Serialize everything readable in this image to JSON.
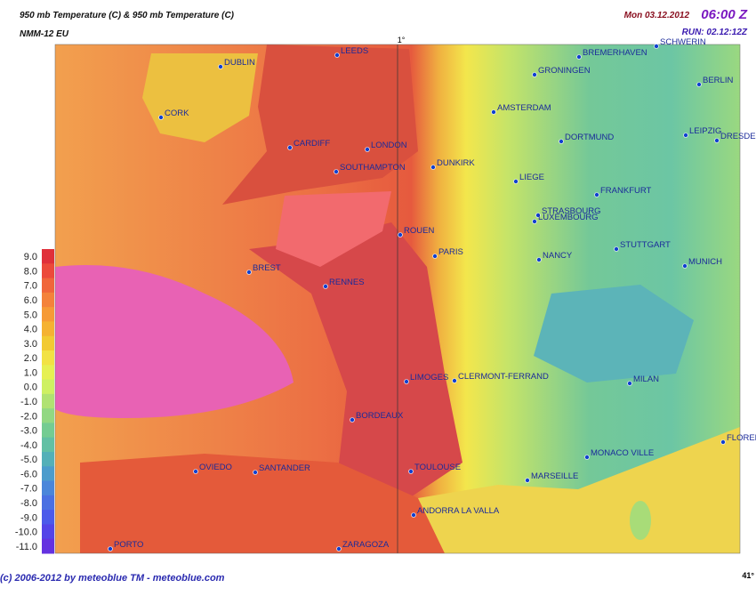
{
  "header": {
    "title": "950 mb Temperature (C)  & 950 mb Temperature (C)",
    "model": "NMM-12 EU",
    "date": "Mon 03.12.2012",
    "time": "06:00 Z",
    "run": "RUN: 02.12:12Z",
    "meridian": "1°"
  },
  "legend": {
    "labels": [
      "9.0",
      "8.0",
      "7.0",
      "6.0",
      "5.0",
      "4.0",
      "3.0",
      "2.0",
      "1.0",
      "0.0",
      "-1.0",
      "-2.0",
      "-3.0",
      "-4.0",
      "-5.0",
      "-6.0",
      "-7.0",
      "-8.0",
      "-9.0",
      "-10.0",
      "-11.0"
    ]
  },
  "cities": [
    "DUBLIN",
    "CORK",
    "LEEDS",
    "CARDIFF",
    "LONDON",
    "SOUTHAMPTON",
    "DUNKIRK",
    "ROUEN",
    "PARIS",
    "BREST",
    "RENNES",
    "LIMOGES",
    "BORDEAUX",
    "TOULOUSE",
    "CLERMONT-FERRAND",
    "NANCY",
    "STRASBOURG",
    "STUTTGART",
    "MUNICH",
    "FRANKFURT",
    "DORTMUND",
    "GRONINGEN",
    "BREMERHAVEN",
    "BERLIN",
    "LEIPZIG",
    "DRESDEN",
    "AMSTERDAM",
    "LIEGE",
    "LUXEMBOURG",
    "MILAN",
    "MONACO VILLE",
    "MARSEILLE",
    "SANTANDER",
    "OVIEDO",
    "ZARAGOZA",
    "ANDORRA LA VALLA",
    "FLORENCE",
    "PORTO",
    "SCHWERIN"
  ],
  "footer": {
    "copyright": "(c) 2006-2012 by meteoblue TM - meteoblue.com",
    "latitude": "41°"
  }
}
